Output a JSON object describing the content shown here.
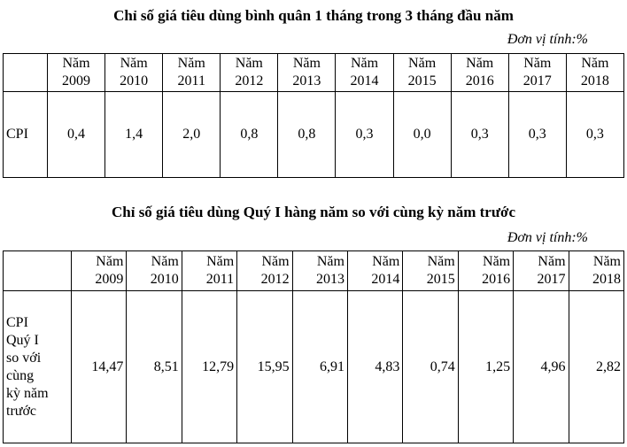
{
  "tables": [
    {
      "title": "Chỉ số giá tiêu dùng bình quân 1 tháng trong 3 tháng đầu năm",
      "unit": "Đơn vị tính:%",
      "header": [
        "Năm\n2009",
        "Năm\n2010",
        "Năm\n2011",
        "Năm\n2012",
        "Năm\n2013",
        "Năm\n2014",
        "Năm\n2015",
        "Năm\n2016",
        "Năm\n2017",
        "Năm\n2018"
      ],
      "row_label": "CPI",
      "values": [
        "0,4",
        "1,4",
        "2,0",
        "0,8",
        "0,8",
        "0,3",
        "0,0",
        "0,3",
        "0,3",
        "0,3"
      ]
    },
    {
      "title": "Chỉ số giá tiêu dùng Quý I hàng năm so với cùng kỳ năm trước",
      "unit": "Đơn vị tính:%",
      "header": [
        "Năm\n2009",
        "Năm\n2010",
        "Năm\n2011",
        "Năm\n2012",
        "Năm\n2013",
        "Năm\n2014",
        "Năm\n2015",
        "Năm\n2016",
        "Năm\n2017",
        "Năm\n2018"
      ],
      "row_label": "CPI\nQuý I\nso với\ncùng\nkỳ năm\ntrước",
      "values": [
        "14,47",
        "8,51",
        "12,79",
        "15,95",
        "6,91",
        "4,83",
        "0,74",
        "1,25",
        "4,96",
        "2,82"
      ]
    }
  ]
}
